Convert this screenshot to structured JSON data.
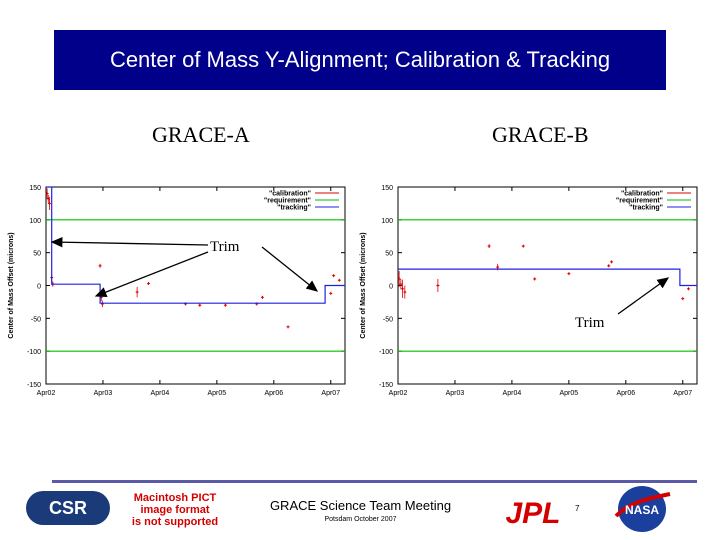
{
  "slide": {
    "title": "Center of Mass Y-Alignment; Calibration & Tracking",
    "footer_meeting": "GRACE Science Team Meeting",
    "footer_sub": "Potsdam October 2007",
    "page_number": "7",
    "pict_message": [
      "Macintosh PICT",
      "image format",
      "is not supported"
    ],
    "logos": {
      "csr": "CSR",
      "jpl": "JPL",
      "nasa": "NASA"
    }
  },
  "annotations": {
    "trim_label": "Trim"
  },
  "colors": {
    "title_bg": "#00008b",
    "calibration": "#e00000",
    "requirement": "#00c000",
    "tracking": "#2020e0",
    "footer_rule": "#5a5aa8"
  },
  "chart_data": [
    {
      "type": "scatter",
      "title": "GRACE-A",
      "ylabel": "Center of Mass Offset (microns)",
      "xlabel": "",
      "x_ticks": [
        "Apr02",
        "Apr03",
        "Apr04",
        "Apr05",
        "Apr06",
        "Apr07"
      ],
      "y_ticks": [
        150,
        100,
        50,
        0,
        -50,
        -100,
        -150
      ],
      "ylim": [
        -150,
        150
      ],
      "xlim": [
        2002.0,
        2007.25
      ],
      "grid": false,
      "legend_position": "top-right",
      "legend": [
        "\"calibration\"",
        "\"requirement\"",
        "\"tracking\""
      ],
      "series": [
        {
          "name": "\"calibration\"",
          "style": "points",
          "points": [
            {
              "x": 2002.02,
              "y": 140,
              "err": 8
            },
            {
              "x": 2002.04,
              "y": 132,
              "err": 6
            },
            {
              "x": 2002.06,
              "y": 125,
              "err": 10
            },
            {
              "x": 2002.1,
              "y": 12,
              "err": 5
            },
            {
              "x": 2002.12,
              "y": 2,
              "err": 4
            },
            {
              "x": 2002.95,
              "y": 30,
              "err": 3
            },
            {
              "x": 2002.97,
              "y": -18,
              "err": 6
            },
            {
              "x": 2002.99,
              "y": -28,
              "err": 5
            },
            {
              "x": 2003.6,
              "y": -10,
              "err": 8
            },
            {
              "x": 2003.8,
              "y": 3,
              "err": 2
            },
            {
              "x": 2004.45,
              "y": -28,
              "err": 2
            },
            {
              "x": 2004.7,
              "y": -30,
              "err": 2
            },
            {
              "x": 2005.15,
              "y": -30,
              "err": 2
            },
            {
              "x": 2005.7,
              "y": -28,
              "err": 2
            },
            {
              "x": 2005.8,
              "y": -18,
              "err": 2
            },
            {
              "x": 2006.25,
              "y": -63,
              "err": 1
            },
            {
              "x": 2007.0,
              "y": -12,
              "err": 1
            },
            {
              "x": 2007.05,
              "y": 15,
              "err": 1
            },
            {
              "x": 2007.15,
              "y": 8,
              "err": 1
            }
          ]
        },
        {
          "name": "\"requirement\"",
          "style": "hlines",
          "values": [
            100,
            -100
          ]
        },
        {
          "name": "\"tracking\"",
          "style": "step",
          "points": [
            [
              2002.0,
              150
            ],
            [
              2002.1,
              150
            ],
            [
              2002.1,
              2
            ],
            [
              2002.95,
              2
            ],
            [
              2002.95,
              -27
            ],
            [
              2006.9,
              -27
            ],
            [
              2006.9,
              0
            ],
            [
              2007.25,
              0
            ]
          ]
        }
      ]
    },
    {
      "type": "scatter",
      "title": "GRACE-B",
      "ylabel": "Center of Mass Offset (microns)",
      "xlabel": "",
      "x_ticks": [
        "Apr02",
        "Apr03",
        "Apr04",
        "Apr05",
        "Apr06",
        "Apr07"
      ],
      "y_ticks": [
        150,
        100,
        50,
        0,
        -50,
        -100,
        -150
      ],
      "ylim": [
        -150,
        150
      ],
      "xlim": [
        2002.0,
        2007.25
      ],
      "grid": false,
      "legend_position": "top-right",
      "legend": [
        "\"calibration\"",
        "\"requirement\"",
        "\"tracking\""
      ],
      "series": [
        {
          "name": "\"calibration\"",
          "style": "points",
          "points": [
            {
              "x": 2002.02,
              "y": 10,
              "err": 12
            },
            {
              "x": 2002.05,
              "y": 2,
              "err": 8
            },
            {
              "x": 2002.08,
              "y": -5,
              "err": 14
            },
            {
              "x": 2002.12,
              "y": -10,
              "err": 10
            },
            {
              "x": 2002.7,
              "y": 0,
              "err": 10
            },
            {
              "x": 2003.6,
              "y": 60,
              "err": 3
            },
            {
              "x": 2003.75,
              "y": 28,
              "err": 5
            },
            {
              "x": 2004.2,
              "y": 60,
              "err": 1
            },
            {
              "x": 2004.4,
              "y": 10,
              "err": 2
            },
            {
              "x": 2005.0,
              "y": 18,
              "err": 1
            },
            {
              "x": 2005.7,
              "y": 30,
              "err": 2
            },
            {
              "x": 2005.75,
              "y": 36,
              "err": 1
            },
            {
              "x": 2007.0,
              "y": -20,
              "err": 1
            },
            {
              "x": 2007.1,
              "y": -5,
              "err": 1
            }
          ]
        },
        {
          "name": "\"requirement\"",
          "style": "hlines",
          "values": [
            100,
            -100
          ]
        },
        {
          "name": "\"tracking\"",
          "style": "step",
          "points": [
            [
              2002.0,
              25
            ],
            [
              2006.95,
              25
            ],
            [
              2006.95,
              0
            ],
            [
              2007.25,
              0
            ]
          ]
        }
      ]
    }
  ]
}
